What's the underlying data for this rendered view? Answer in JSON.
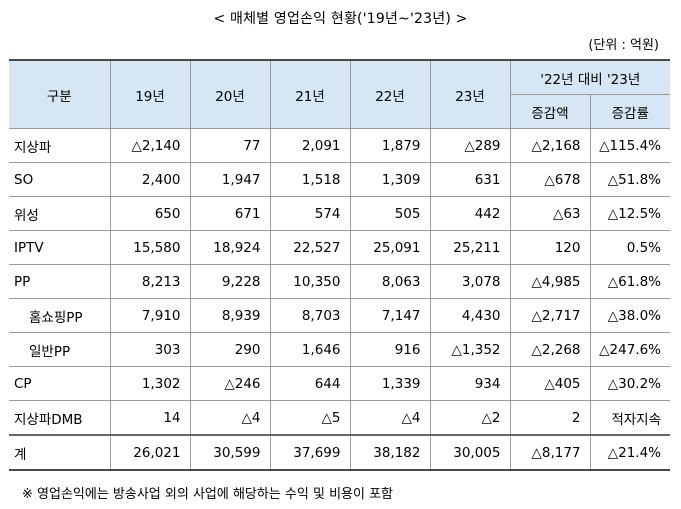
{
  "title": "< 매체별 영업손익 현황('19년~'23년) >",
  "unit": "(단위 : 억원)",
  "header": {
    "category": "구분",
    "years": [
      "19년",
      "20년",
      "21년",
      "22년",
      "23년"
    ],
    "comparison": "'22년 대비 '23년",
    "change_amount": "증감액",
    "change_rate": "증감률"
  },
  "rows": [
    {
      "category": "지상파",
      "indent": false,
      "values": [
        "△2,140",
        "77",
        "2,091",
        "1,879",
        "△289",
        "△2,168",
        "△115.4%"
      ]
    },
    {
      "category": "SO",
      "indent": false,
      "values": [
        "2,400",
        "1,947",
        "1,518",
        "1,309",
        "631",
        "△678",
        "△51.8%"
      ]
    },
    {
      "category": "위성",
      "indent": false,
      "values": [
        "650",
        "671",
        "574",
        "505",
        "442",
        "△63",
        "△12.5%"
      ]
    },
    {
      "category": "IPTV",
      "indent": false,
      "values": [
        "15,580",
        "18,924",
        "22,527",
        "25,091",
        "25,211",
        "120",
        "0.5%"
      ]
    },
    {
      "category": "PP",
      "indent": false,
      "values": [
        "8,213",
        "9,228",
        "10,350",
        "8,063",
        "3,078",
        "△4,985",
        "△61.8%"
      ]
    },
    {
      "category": "홈쇼핑PP",
      "indent": true,
      "values": [
        "7,910",
        "8,939",
        "8,703",
        "7,147",
        "4,430",
        "△2,717",
        "△38.0%"
      ]
    },
    {
      "category": "일반PP",
      "indent": true,
      "values": [
        "303",
        "290",
        "1,646",
        "916",
        "△1,352",
        "△2,268",
        "△247.6%"
      ]
    },
    {
      "category": "CP",
      "indent": false,
      "values": [
        "1,302",
        "△246",
        "644",
        "1,339",
        "934",
        "△405",
        "△30.2%"
      ]
    },
    {
      "category": "지상파DMB",
      "indent": false,
      "values": [
        "14",
        "△4",
        "△5",
        "△4",
        "△2",
        "2",
        "적자지속"
      ]
    }
  ],
  "total": {
    "category": "계",
    "values": [
      "26,021",
      "30,599",
      "37,699",
      "38,182",
      "30,005",
      "△8,177",
      "△21.4%"
    ]
  },
  "note": "※ 영업손익에는 방송사업 외의 사업에 해당하는 수익 및 비용이 포함"
}
